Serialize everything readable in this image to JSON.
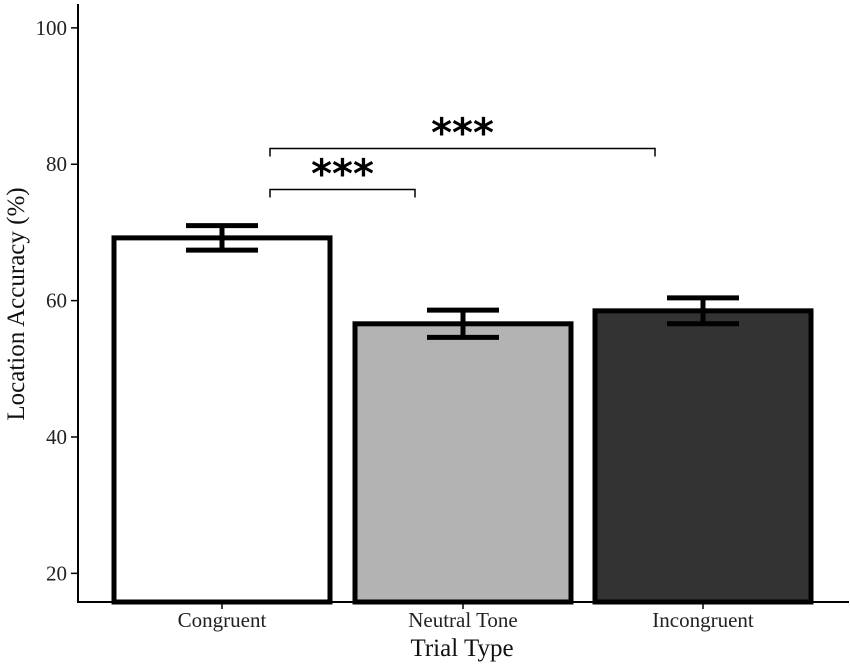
{
  "chart_data": {
    "type": "bar",
    "categories": [
      "Congruent",
      "Neutral Tone",
      "Incongruent"
    ],
    "values": [
      69.2,
      56.6,
      58.5
    ],
    "errors": [
      1.8,
      2.0,
      1.9
    ],
    "colors": [
      "#ffffff",
      "#b3b3b3",
      "#333333"
    ],
    "bar_outline": "#000000",
    "xlabel": "Trial Type",
    "ylabel": "Location Accuracy (%)",
    "ylim": [
      15.8,
      103.5
    ],
    "yticks": [
      20,
      40,
      60,
      80,
      100
    ],
    "ytick_labels": [
      "20",
      "40",
      "60",
      "80",
      "100"
    ],
    "grid": false,
    "significance": [
      {
        "from": "Congruent",
        "to": "Neutral Tone",
        "label": "***",
        "y": 76.3
      },
      {
        "from": "Congruent",
        "to": "Incongruent",
        "label": "***",
        "y": 82.3
      }
    ]
  }
}
